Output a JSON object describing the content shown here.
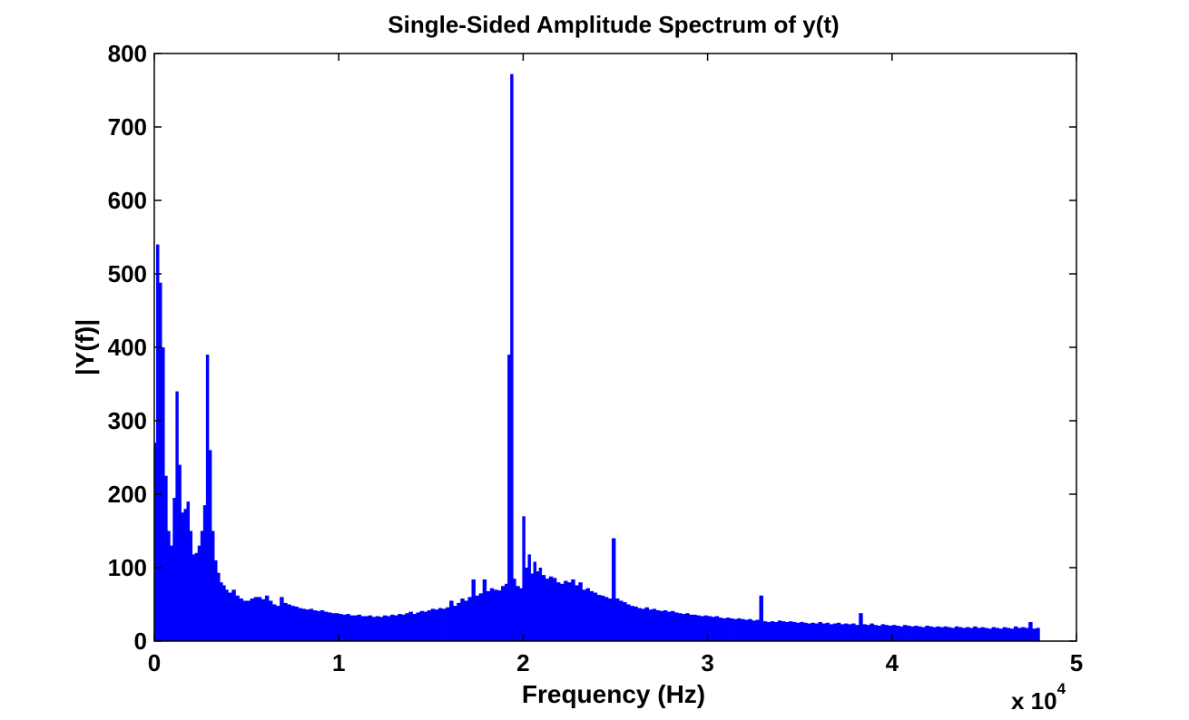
{
  "chart_data": {
    "type": "bar",
    "title": "Single-Sided Amplitude Spectrum of y(t)",
    "xlabel": "Frequency (Hz)",
    "ylabel": "|Y(f)|",
    "x_multiplier": {
      "base": "x 10",
      "exponent": "4"
    },
    "xlim": [
      0,
      50000
    ],
    "ylim": [
      0,
      800
    ],
    "xticks": [
      0,
      10000,
      20000,
      30000,
      40000,
      50000
    ],
    "xtick_labels": [
      "0",
      "1",
      "2",
      "3",
      "4",
      "5"
    ],
    "yticks": [
      0,
      100,
      200,
      300,
      400,
      500,
      600,
      700,
      800
    ],
    "ytick_labels": [
      "0",
      "100",
      "200",
      "300",
      "400",
      "500",
      "600",
      "700",
      "800"
    ],
    "bar_color": "#0000ff",
    "grid": false,
    "series": [
      {
        "points": [
          [
            0,
            270
          ],
          [
            100,
            540
          ],
          [
            250,
            488
          ],
          [
            400,
            400
          ],
          [
            550,
            225
          ],
          [
            700,
            150
          ],
          [
            850,
            130
          ],
          [
            1000,
            195
          ],
          [
            1150,
            340
          ],
          [
            1300,
            240
          ],
          [
            1450,
            175
          ],
          [
            1600,
            180
          ],
          [
            1750,
            190
          ],
          [
            1900,
            150
          ],
          [
            2050,
            118
          ],
          [
            2200,
            120
          ],
          [
            2350,
            130
          ],
          [
            2500,
            150
          ],
          [
            2650,
            185
          ],
          [
            2800,
            390
          ],
          [
            2950,
            260
          ],
          [
            3100,
            150
          ],
          [
            3250,
            110
          ],
          [
            3400,
            93
          ],
          [
            3550,
            80
          ],
          [
            3700,
            76
          ],
          [
            3850,
            70
          ],
          [
            4000,
            66
          ],
          [
            4200,
            70
          ],
          [
            4400,
            62
          ],
          [
            4600,
            58
          ],
          [
            4800,
            55
          ],
          [
            5000,
            55
          ],
          [
            5200,
            58
          ],
          [
            5400,
            60
          ],
          [
            5600,
            60
          ],
          [
            5800,
            57
          ],
          [
            6000,
            62
          ],
          [
            6200,
            55
          ],
          [
            6400,
            50
          ],
          [
            6600,
            48
          ],
          [
            6800,
            60
          ],
          [
            7000,
            52
          ],
          [
            7200,
            50
          ],
          [
            7400,
            48
          ],
          [
            7600,
            47
          ],
          [
            7800,
            45
          ],
          [
            8000,
            44
          ],
          [
            8200,
            43
          ],
          [
            8400,
            44
          ],
          [
            8600,
            42
          ],
          [
            8800,
            41
          ],
          [
            9000,
            42
          ],
          [
            9200,
            40
          ],
          [
            9400,
            39
          ],
          [
            9600,
            38
          ],
          [
            9800,
            38
          ],
          [
            10000,
            37
          ],
          [
            10200,
            36
          ],
          [
            10400,
            37
          ],
          [
            10600,
            35
          ],
          [
            10800,
            35
          ],
          [
            11000,
            36
          ],
          [
            11200,
            34
          ],
          [
            11400,
            34
          ],
          [
            11600,
            35
          ],
          [
            11800,
            33
          ],
          [
            12000,
            34
          ],
          [
            12200,
            33
          ],
          [
            12400,
            35
          ],
          [
            12600,
            34
          ],
          [
            12800,
            36
          ],
          [
            13000,
            35
          ],
          [
            13200,
            37
          ],
          [
            13400,
            36
          ],
          [
            13600,
            38
          ],
          [
            13800,
            40
          ],
          [
            14000,
            37
          ],
          [
            14200,
            39
          ],
          [
            14400,
            41
          ],
          [
            14600,
            40
          ],
          [
            14800,
            42
          ],
          [
            15000,
            44
          ],
          [
            15200,
            43
          ],
          [
            15400,
            45
          ],
          [
            15600,
            44
          ],
          [
            15800,
            46
          ],
          [
            16000,
            55
          ],
          [
            16200,
            48
          ],
          [
            16400,
            52
          ],
          [
            16600,
            58
          ],
          [
            16800,
            55
          ],
          [
            17000,
            60
          ],
          [
            17200,
            84
          ],
          [
            17400,
            62
          ],
          [
            17600,
            65
          ],
          [
            17800,
            84
          ],
          [
            18000,
            68
          ],
          [
            18200,
            72
          ],
          [
            18400,
            70
          ],
          [
            18600,
            69
          ],
          [
            18800,
            75
          ],
          [
            19000,
            78
          ],
          [
            19150,
            390
          ],
          [
            19300,
            772
          ],
          [
            19450,
            85
          ],
          [
            19600,
            75
          ],
          [
            19800,
            72
          ],
          [
            19950,
            170
          ],
          [
            20100,
            100
          ],
          [
            20250,
            118
          ],
          [
            20400,
            92
          ],
          [
            20550,
            108
          ],
          [
            20700,
            95
          ],
          [
            20850,
            100
          ],
          [
            21000,
            90
          ],
          [
            21200,
            85
          ],
          [
            21400,
            88
          ],
          [
            21600,
            86
          ],
          [
            21800,
            80
          ],
          [
            22000,
            78
          ],
          [
            22200,
            82
          ],
          [
            22400,
            80
          ],
          [
            22600,
            84
          ],
          [
            22800,
            76
          ],
          [
            23000,
            80
          ],
          [
            23200,
            70
          ],
          [
            23400,
            72
          ],
          [
            23600,
            68
          ],
          [
            23800,
            66
          ],
          [
            24000,
            63
          ],
          [
            24200,
            62
          ],
          [
            24400,
            60
          ],
          [
            24600,
            58
          ],
          [
            24800,
            140
          ],
          [
            25000,
            58
          ],
          [
            25200,
            55
          ],
          [
            25400,
            53
          ],
          [
            25600,
            50
          ],
          [
            25800,
            48
          ],
          [
            26000,
            47
          ],
          [
            26200,
            45
          ],
          [
            26400,
            44
          ],
          [
            26600,
            46
          ],
          [
            26800,
            43
          ],
          [
            27000,
            44
          ],
          [
            27200,
            42
          ],
          [
            27400,
            41
          ],
          [
            27600,
            42
          ],
          [
            27800,
            40
          ],
          [
            28000,
            41
          ],
          [
            28200,
            39
          ],
          [
            28400,
            38
          ],
          [
            28600,
            37
          ],
          [
            28800,
            38
          ],
          [
            29000,
            36
          ],
          [
            29200,
            36
          ],
          [
            29400,
            35
          ],
          [
            29600,
            34
          ],
          [
            29800,
            35
          ],
          [
            30000,
            34
          ],
          [
            30200,
            33
          ],
          [
            30400,
            34
          ],
          [
            30600,
            32
          ],
          [
            30800,
            31
          ],
          [
            31000,
            32
          ],
          [
            31200,
            31
          ],
          [
            31400,
            30
          ],
          [
            31600,
            31
          ],
          [
            31800,
            30
          ],
          [
            32000,
            29
          ],
          [
            32200,
            30
          ],
          [
            32400,
            28
          ],
          [
            32600,
            29
          ],
          [
            32800,
            62
          ],
          [
            33000,
            27
          ],
          [
            33200,
            26
          ],
          [
            33400,
            27
          ],
          [
            33600,
            26
          ],
          [
            33800,
            28
          ],
          [
            34000,
            27
          ],
          [
            34200,
            26
          ],
          [
            34400,
            27
          ],
          [
            34600,
            26
          ],
          [
            34800,
            25
          ],
          [
            35000,
            26
          ],
          [
            35200,
            25
          ],
          [
            35400,
            24
          ],
          [
            35600,
            25
          ],
          [
            35800,
            24
          ],
          [
            36000,
            26
          ],
          [
            36200,
            24
          ],
          [
            36400,
            25
          ],
          [
            36600,
            23
          ],
          [
            36800,
            24
          ],
          [
            37000,
            25
          ],
          [
            37200,
            23
          ],
          [
            37400,
            24
          ],
          [
            37600,
            23
          ],
          [
            37800,
            24
          ],
          [
            38000,
            22
          ],
          [
            38200,
            38
          ],
          [
            38400,
            23
          ],
          [
            38600,
            22
          ],
          [
            38800,
            24
          ],
          [
            39000,
            22
          ],
          [
            39200,
            21
          ],
          [
            39400,
            23
          ],
          [
            39600,
            22
          ],
          [
            39800,
            21
          ],
          [
            40000,
            22
          ],
          [
            40200,
            21
          ],
          [
            40400,
            20
          ],
          [
            40600,
            22
          ],
          [
            40800,
            21
          ],
          [
            41000,
            20
          ],
          [
            41200,
            21
          ],
          [
            41400,
            20
          ],
          [
            41600,
            19
          ],
          [
            41800,
            21
          ],
          [
            42000,
            20
          ],
          [
            42200,
            19
          ],
          [
            42400,
            20
          ],
          [
            42600,
            19
          ],
          [
            42800,
            20
          ],
          [
            43000,
            19
          ],
          [
            43200,
            18
          ],
          [
            43400,
            20
          ],
          [
            43600,
            19
          ],
          [
            43800,
            18
          ],
          [
            44000,
            19
          ],
          [
            44200,
            18
          ],
          [
            44400,
            20
          ],
          [
            44600,
            18
          ],
          [
            44800,
            19
          ],
          [
            45000,
            18
          ],
          [
            45200,
            17
          ],
          [
            45400,
            19
          ],
          [
            45600,
            18
          ],
          [
            45800,
            17
          ],
          [
            46000,
            19
          ],
          [
            46200,
            18
          ],
          [
            46400,
            17
          ],
          [
            46600,
            20
          ],
          [
            46800,
            18
          ],
          [
            47000,
            19
          ],
          [
            47200,
            18
          ],
          [
            47400,
            26
          ],
          [
            47600,
            17
          ],
          [
            47800,
            18
          ]
        ]
      }
    ]
  }
}
